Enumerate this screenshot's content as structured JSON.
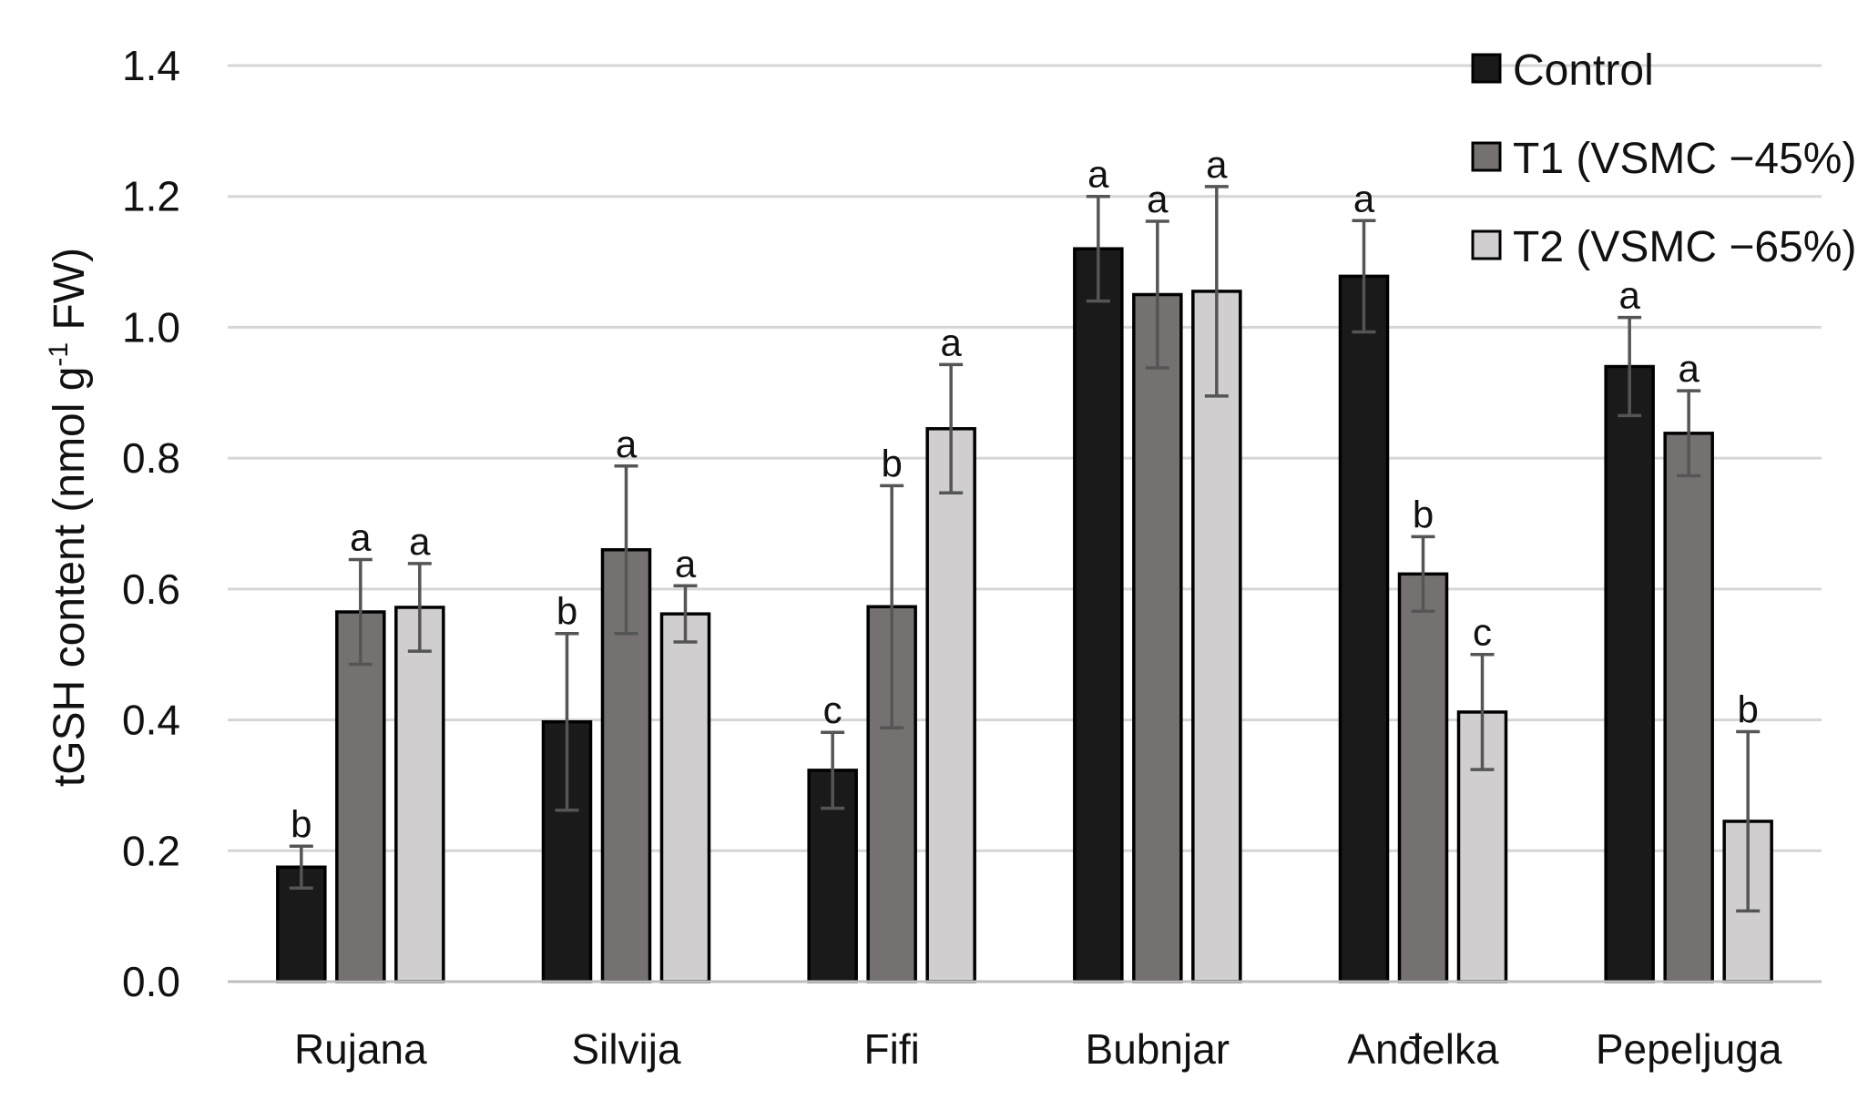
{
  "chart_data": {
    "type": "bar",
    "title": "",
    "xlabel": "",
    "ylabel": "tGSH content (nmol g",
    "ylabel_superscript": "-1",
    "ylabel_suffix": " FW)",
    "ylim": [
      0,
      1.4
    ],
    "yticks": [
      "0.0",
      "0.2",
      "0.4",
      "0.6",
      "0.8",
      "1.0",
      "1.2",
      "1.4"
    ],
    "grid": true,
    "legend_position": "top-right",
    "categories": [
      "Rujana",
      "Silvija",
      "Fifi",
      "Bubnjar",
      "Anđelka",
      "Pepeljuga"
    ],
    "series": [
      {
        "name": "Control",
        "color": "#1a1a1a",
        "values": [
          0.175,
          0.397,
          0.323,
          1.12,
          1.078,
          0.94
        ],
        "errors": [
          0.032,
          0.135,
          0.058,
          0.08,
          0.085,
          0.075
        ],
        "letters": [
          "b",
          "b",
          "c",
          "a",
          "a",
          "a"
        ]
      },
      {
        "name": "T1 (VSMC −45%)",
        "color": "#767171",
        "values": [
          0.565,
          0.66,
          0.573,
          1.05,
          0.623,
          0.838
        ],
        "errors": [
          0.08,
          0.128,
          0.185,
          0.112,
          0.057,
          0.065
        ],
        "letters": [
          "a",
          "a",
          "b",
          "a",
          "b",
          "a"
        ]
      },
      {
        "name": "T2 (VSMC −65%)",
        "color": "#d0cece",
        "values": [
          0.572,
          0.562,
          0.845,
          1.055,
          0.412,
          0.245
        ],
        "errors": [
          0.067,
          0.043,
          0.098,
          0.16,
          0.088,
          0.137
        ],
        "letters": [
          "a",
          "a",
          "a",
          "a",
          "c",
          "b"
        ]
      }
    ]
  }
}
